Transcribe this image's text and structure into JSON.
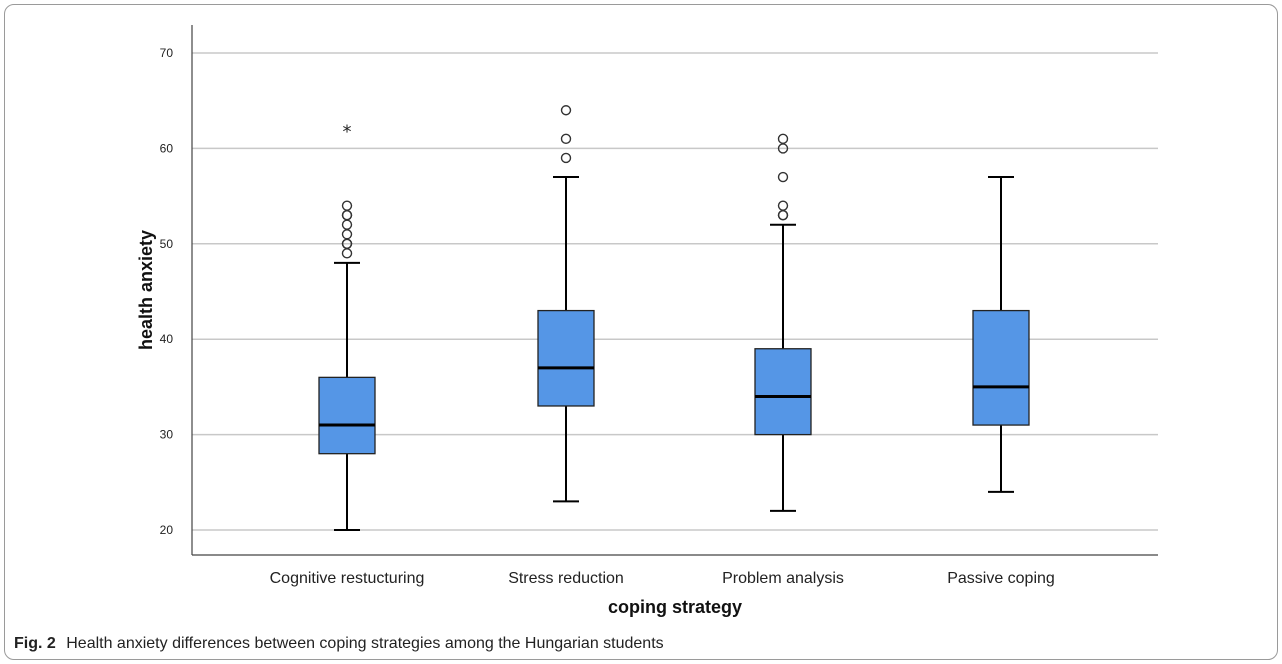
{
  "caption": {
    "label": "Fig. 2",
    "text": "Health anxiety differences between coping strategies among the Hungarian students"
  },
  "chart_data": {
    "type": "boxplot",
    "xlabel": "coping strategy",
    "ylabel": "health anxiety",
    "ylim": [
      18,
      72
    ],
    "yticks": [
      20,
      30,
      40,
      50,
      60,
      70
    ],
    "grid": "horizontal",
    "box_color": "#5596e6",
    "categories": [
      "Cognitive restucturing",
      "Stress reduction",
      "Problem analysis",
      "Passive coping"
    ],
    "boxes": [
      {
        "category": "Cognitive restucturing",
        "whisker_low": 20,
        "q1": 28,
        "median": 31,
        "q3": 36,
        "whisker_high": 48,
        "outliers": [
          49,
          50,
          50,
          51,
          52,
          53,
          53,
          54
        ],
        "extremes": [
          62
        ]
      },
      {
        "category": "Stress reduction",
        "whisker_low": 23,
        "q1": 33,
        "median": 37,
        "q3": 43,
        "whisker_high": 57,
        "outliers": [
          59,
          61,
          64
        ],
        "extremes": []
      },
      {
        "category": "Problem analysis",
        "whisker_low": 22,
        "q1": 30,
        "median": 34,
        "q3": 39,
        "whisker_high": 52,
        "outliers": [
          53,
          53,
          54,
          57,
          60,
          61
        ],
        "extremes": []
      },
      {
        "category": "Passive coping",
        "whisker_low": 24,
        "q1": 31,
        "median": 35,
        "q3": 43,
        "whisker_high": 57,
        "outliers": [],
        "extremes": []
      }
    ]
  }
}
